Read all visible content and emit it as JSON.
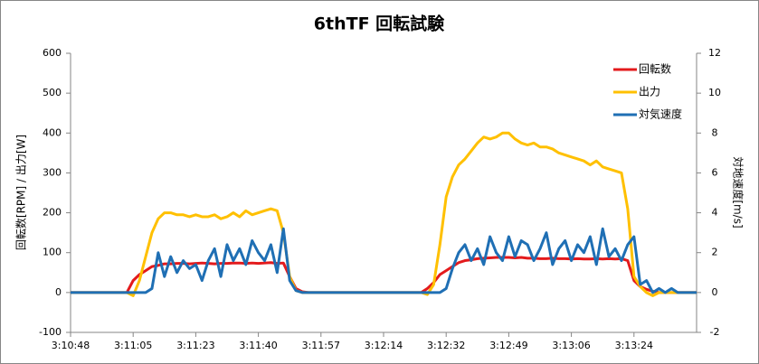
{
  "chart_data": {
    "type": "line",
    "title": "6thTF 回転試験",
    "y_label": "回転数[RPM] / 出力[W]",
    "y2_label": "対地速度[m/s]",
    "categories": [
      "3:10:48",
      null,
      null,
      null,
      null,
      null,
      null,
      null,
      null,
      null,
      "3:11:05",
      null,
      null,
      null,
      null,
      null,
      null,
      null,
      null,
      null,
      "3:11:23",
      null,
      null,
      null,
      null,
      null,
      null,
      null,
      null,
      null,
      "3:11:40",
      null,
      null,
      null,
      null,
      null,
      null,
      null,
      null,
      null,
      "3:11:57",
      null,
      null,
      null,
      null,
      null,
      null,
      null,
      null,
      null,
      "3:12:14",
      null,
      null,
      null,
      null,
      null,
      null,
      null,
      null,
      null,
      "3:12:32",
      null,
      null,
      null,
      null,
      null,
      null,
      null,
      null,
      null,
      "3:12:49",
      null,
      null,
      null,
      null,
      null,
      null,
      null,
      null,
      null,
      "3:13:06",
      null,
      null,
      null,
      null,
      null,
      null,
      null,
      null,
      null,
      "3:13:24",
      null,
      null,
      null,
      null,
      null,
      null,
      null,
      null,
      null,
      null
    ],
    "series": [
      {
        "name": "回転数",
        "color": "#e31a1c",
        "values": [
          0,
          0,
          0,
          0,
          0,
          0,
          0,
          0,
          0,
          0,
          30,
          45,
          55,
          65,
          68,
          72,
          72,
          73,
          73,
          72,
          73,
          74,
          73,
          72,
          73,
          73,
          74,
          74,
          73,
          74,
          73,
          74,
          75,
          73,
          74,
          40,
          10,
          2,
          0,
          0,
          0,
          0,
          0,
          0,
          0,
          0,
          0,
          0,
          0,
          0,
          0,
          0,
          0,
          0,
          0,
          0,
          0,
          10,
          25,
          45,
          55,
          65,
          75,
          80,
          82,
          85,
          86,
          87,
          88,
          88,
          88,
          87,
          88,
          86,
          86,
          85,
          85,
          86,
          85,
          85,
          84,
          85,
          84,
          84,
          85,
          84,
          85,
          84,
          85,
          80,
          30,
          15,
          8,
          3,
          0,
          0,
          0,
          0,
          0,
          0,
          0
        ]
      },
      {
        "name": "出力",
        "color": "#ffc000",
        "values": [
          0,
          0,
          0,
          0,
          0,
          0,
          0,
          0,
          0,
          0,
          -8,
          30,
          90,
          150,
          185,
          200,
          200,
          195,
          195,
          190,
          195,
          190,
          190,
          195,
          185,
          190,
          200,
          190,
          205,
          195,
          200,
          205,
          210,
          205,
          150,
          40,
          5,
          0,
          0,
          0,
          0,
          0,
          0,
          0,
          0,
          0,
          0,
          0,
          0,
          0,
          0,
          0,
          0,
          0,
          0,
          0,
          0,
          -5,
          20,
          120,
          240,
          290,
          320,
          335,
          355,
          375,
          390,
          385,
          390,
          400,
          400,
          385,
          375,
          370,
          375,
          365,
          365,
          360,
          350,
          345,
          340,
          335,
          330,
          320,
          330,
          315,
          310,
          305,
          300,
          210,
          40,
          15,
          0,
          -8,
          0,
          0,
          0,
          0,
          0,
          0,
          0
        ]
      },
      {
        "name": "対気速度",
        "color": "#1f6fb4",
        "axis": "y2",
        "values": [
          0,
          0,
          0,
          0,
          0,
          0,
          0,
          0,
          0,
          0,
          0,
          0,
          0,
          0.2,
          2,
          0.8,
          1.8,
          1.0,
          1.6,
          1.2,
          1.4,
          0.6,
          1.6,
          2.2,
          0.8,
          2.4,
          1.6,
          2.2,
          1.4,
          2.6,
          2.0,
          1.6,
          2.4,
          1.0,
          3.2,
          0.6,
          0.1,
          0,
          0,
          0,
          0,
          0,
          0,
          0,
          0,
          0,
          0,
          0,
          0,
          0,
          0,
          0,
          0,
          0,
          0,
          0,
          0,
          0,
          0,
          0,
          0.2,
          1.2,
          2.0,
          2.4,
          1.6,
          2.2,
          1.4,
          2.8,
          2.0,
          1.6,
          2.8,
          1.8,
          2.6,
          2.4,
          1.6,
          2.2,
          3.0,
          1.4,
          2.2,
          2.6,
          1.6,
          2.4,
          2.0,
          2.8,
          1.4,
          3.2,
          1.8,
          2.2,
          1.6,
          2.4,
          2.8,
          0.4,
          0.6,
          0,
          0.2,
          0,
          0.2,
          0,
          0,
          0,
          0
        ]
      }
    ],
    "ylim": [
      -100,
      600
    ],
    "yticks": [
      -100,
      0,
      100,
      200,
      300,
      400,
      500,
      600
    ],
    "y2lim": [
      -2,
      12
    ],
    "y2ticks": [
      -2,
      0,
      2,
      4,
      6,
      8,
      10,
      12
    ],
    "grid": false,
    "legend": "top-right"
  }
}
